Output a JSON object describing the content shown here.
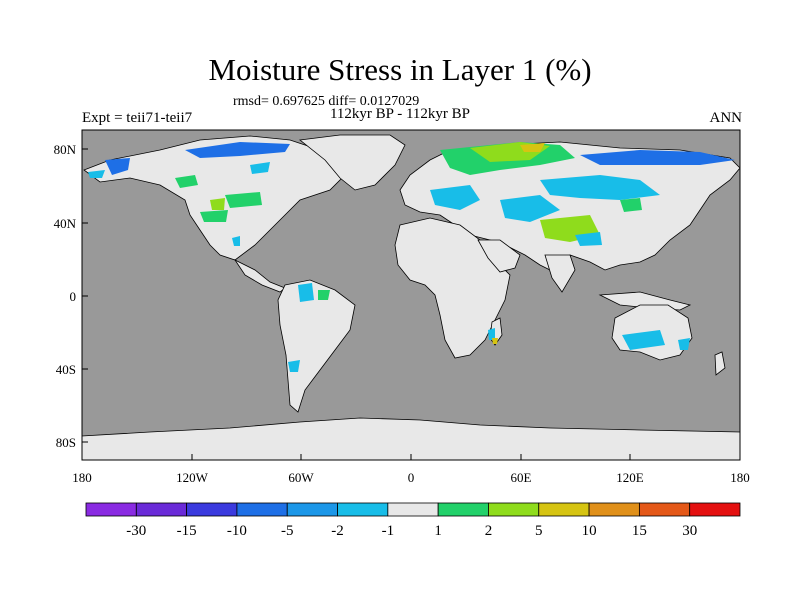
{
  "title": "Moisture Stress in Layer 1 (%)",
  "stats_line": "rmsd= 0.697625 diff= 0.0127029",
  "experiment": "Expt = teii71-teii7",
  "period": "112kyr BP - 112kyr BP",
  "season": "ANN",
  "axes": {
    "x_ticks": [
      "180",
      "120W",
      "60W",
      "0",
      "60E",
      "120E",
      "180"
    ],
    "y_ticks": [
      "80N",
      "40N",
      "0",
      "40S",
      "80S"
    ]
  },
  "colorbar": {
    "colors": [
      "#8a2be2",
      "#6a2ad8",
      "#3b3ade",
      "#1e6fe6",
      "#1c97e8",
      "#18bde8",
      "#e8e8e8",
      "#22d16a",
      "#8fdc1c",
      "#d6c412",
      "#e0901a",
      "#e45818",
      "#e41010"
    ],
    "labels": [
      "-30",
      "-15",
      "-10",
      "-5",
      "-2",
      "-1",
      "1",
      "2",
      "5",
      "10",
      "15",
      "30"
    ]
  },
  "colors": {
    "ocean": "#999999",
    "land": "#e8e8e8",
    "coast": "#000000"
  }
}
